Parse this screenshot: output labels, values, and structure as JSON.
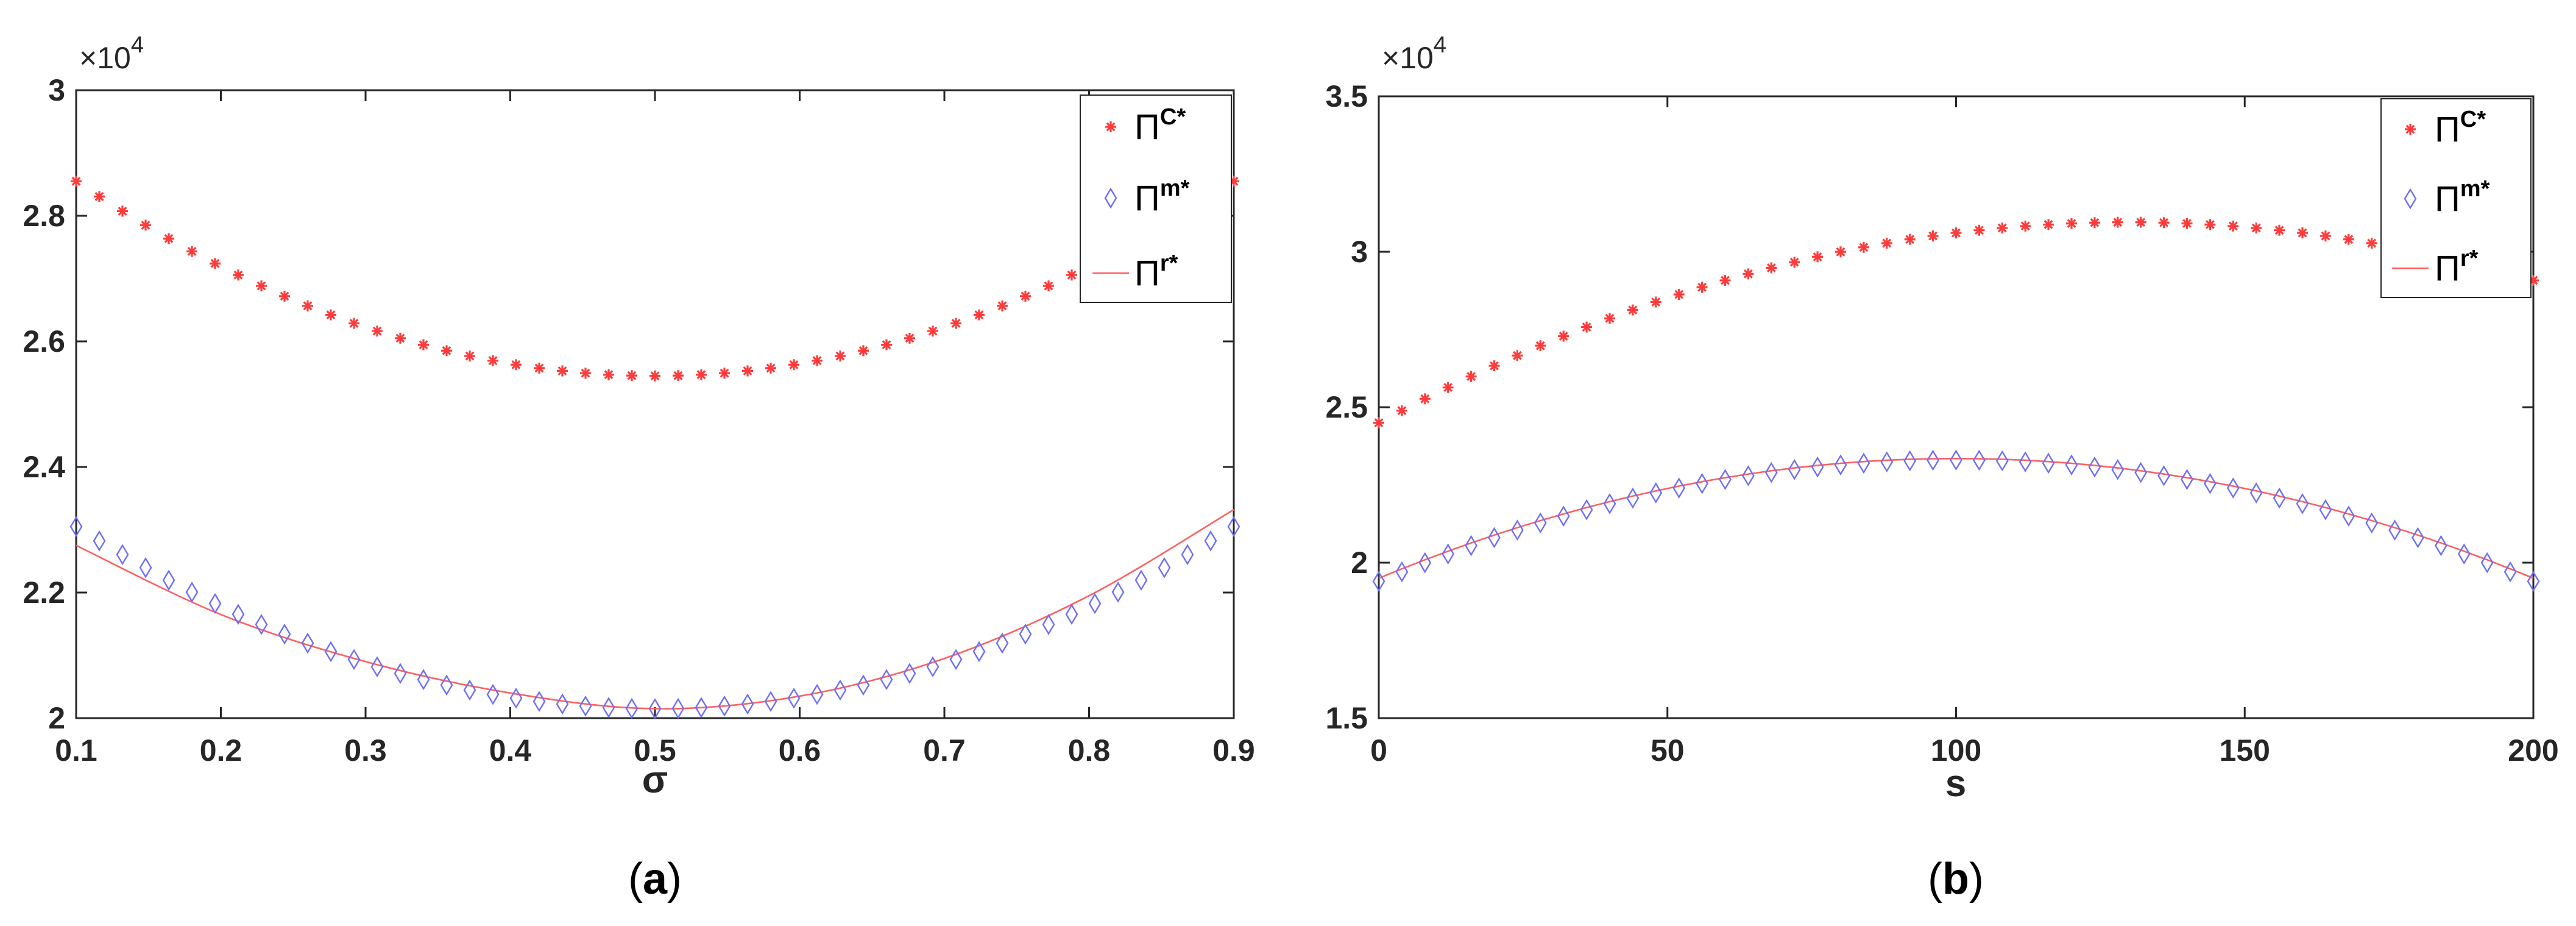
{
  "chart_data": [
    {
      "type": "scatter",
      "panel_label": "a",
      "xlabel": "σ",
      "ylabel": "",
      "y_exponent_base": "×10",
      "y_exponent_power": "4",
      "xlim": [
        0.1,
        0.9
      ],
      "ylim": [
        20000,
        30000
      ],
      "x_ticks": [
        "0.1",
        "0.2",
        "0.3",
        "0.4",
        "0.5",
        "0.6",
        "0.7",
        "0.8",
        "0.9"
      ],
      "y_ticks": [
        "2",
        "2.2",
        "2.4",
        "2.6",
        "2.8",
        "3"
      ],
      "grid": false,
      "legend_position": "top-right",
      "x_start": 0.1,
      "x_end": 0.9,
      "num_points": 51,
      "series": [
        {
          "name": "Π",
          "superscript": "C*",
          "marker": "star",
          "color": "#ff3b3b",
          "quadratic": {
            "vertex_x": 0.5,
            "vertex_y": 25450,
            "end_value": 28550
          }
        },
        {
          "name": "Π",
          "superscript": "m*",
          "marker": "diamond",
          "color": "#6f6ff5",
          "quadratic": {
            "vertex_x": 0.5,
            "vertex_y": 20150,
            "end_value": 23050
          }
        },
        {
          "name": "Π",
          "superscript": "r*",
          "marker": "line",
          "color": "#ff6060",
          "points": [
            [
              0.1,
              22750
            ],
            [
              0.2,
              21650
            ],
            [
              0.3,
              20900
            ],
            [
              0.4,
              20400
            ],
            [
              0.5,
              20150
            ],
            [
              0.6,
              20350
            ],
            [
              0.7,
              20950
            ],
            [
              0.8,
              21950
            ],
            [
              0.9,
              23320
            ]
          ]
        }
      ]
    },
    {
      "type": "scatter",
      "panel_label": "b",
      "xlabel": "s",
      "ylabel": "",
      "y_exponent_base": "×10",
      "y_exponent_power": "4",
      "xlim": [
        0,
        200
      ],
      "ylim": [
        15000,
        35000
      ],
      "x_ticks": [
        "0",
        "50",
        "100",
        "150",
        "200"
      ],
      "y_ticks": [
        "1.5",
        "2",
        "2.5",
        "3",
        "3.5"
      ],
      "grid": false,
      "legend_position": "top-right",
      "x_start": 0,
      "x_end": 200,
      "num_points": 51,
      "series": [
        {
          "name": "Π",
          "superscript": "C*",
          "marker": "star",
          "color": "#ff3b3b",
          "quadratic": {
            "vertex_x": 130,
            "vertex_y": 30950,
            "start_value": 24500
          }
        },
        {
          "name": "Π",
          "superscript": "m*",
          "marker": "diamond",
          "color": "#6f6ff5",
          "quadratic": {
            "vertex_x": 100,
            "vertex_y": 23300,
            "start_value": 19400
          }
        },
        {
          "name": "Π",
          "superscript": "r*",
          "marker": "line",
          "color": "#ff6060",
          "quadratic": {
            "vertex_x": 100,
            "vertex_y": 23350,
            "start_value": 19500
          }
        }
      ]
    }
  ]
}
